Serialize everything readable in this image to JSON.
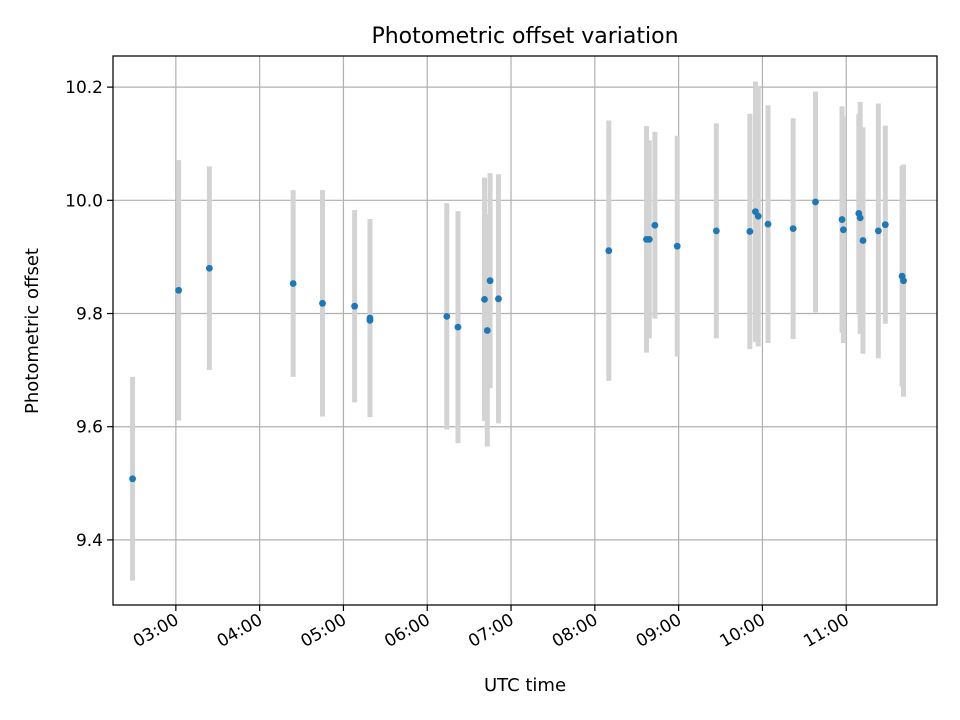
{
  "chart_data": {
    "type": "scatter",
    "title": "Photometric offset variation",
    "xlabel": "UTC time",
    "ylabel": "Photometric offset",
    "xlim": [
      "02:15",
      "12:05"
    ],
    "ylim": [
      9.285,
      10.255
    ],
    "x_ticks": [
      "03:00",
      "04:00",
      "05:00",
      "06:00",
      "07:00",
      "08:00",
      "09:00",
      "10:00",
      "11:00"
    ],
    "y_ticks": [
      9.4,
      9.6,
      9.8,
      10.0,
      10.2
    ],
    "y_tick_labels": [
      "9.4",
      "9.6",
      "9.8",
      "10.0",
      "10.2"
    ],
    "grid": true,
    "colors": {
      "point": "#1f77b4",
      "error_bar": "#d3d3d3",
      "grid": "#b0b0b0"
    },
    "series": [
      {
        "x": [
          "02:29",
          "03:02",
          "03:24",
          "04:24",
          "04:45",
          "05:08",
          "05:19",
          "05:19",
          "06:14",
          "06:22",
          "06:41",
          "06:43",
          "06:45",
          "06:51",
          "08:10",
          "08:37",
          "08:39",
          "08:43",
          "08:59",
          "09:27",
          "09:51",
          "09:55",
          "09:57",
          "10:04",
          "10:22",
          "10:38",
          "10:57",
          "10:58",
          "11:09",
          "11:10",
          "11:12",
          "11:23",
          "11:28",
          "11:40",
          "11:41"
        ],
        "y": [
          9.508,
          9.841,
          9.88,
          9.853,
          9.818,
          9.813,
          9.792,
          9.788,
          9.795,
          9.776,
          9.825,
          9.77,
          9.858,
          9.826,
          9.911,
          9.931,
          9.931,
          9.956,
          9.919,
          9.946,
          9.945,
          9.98,
          9.972,
          9.958,
          9.95,
          9.997,
          9.966,
          9.948,
          9.977,
          9.969,
          9.929,
          9.946,
          9.957,
          9.866,
          9.858
        ],
        "yerr": [
          0.18,
          0.23,
          0.18,
          0.165,
          0.2,
          0.17,
          0.175,
          0.165,
          0.2,
          0.205,
          0.215,
          0.205,
          0.19,
          0.22,
          0.23,
          0.2,
          0.175,
          0.165,
          0.195,
          0.19,
          0.208,
          0.23,
          0.23,
          0.21,
          0.195,
          0.195,
          0.2,
          0.2,
          0.175,
          0.205,
          0.2,
          0.225,
          0.175,
          0.195,
          0.205
        ]
      }
    ]
  }
}
